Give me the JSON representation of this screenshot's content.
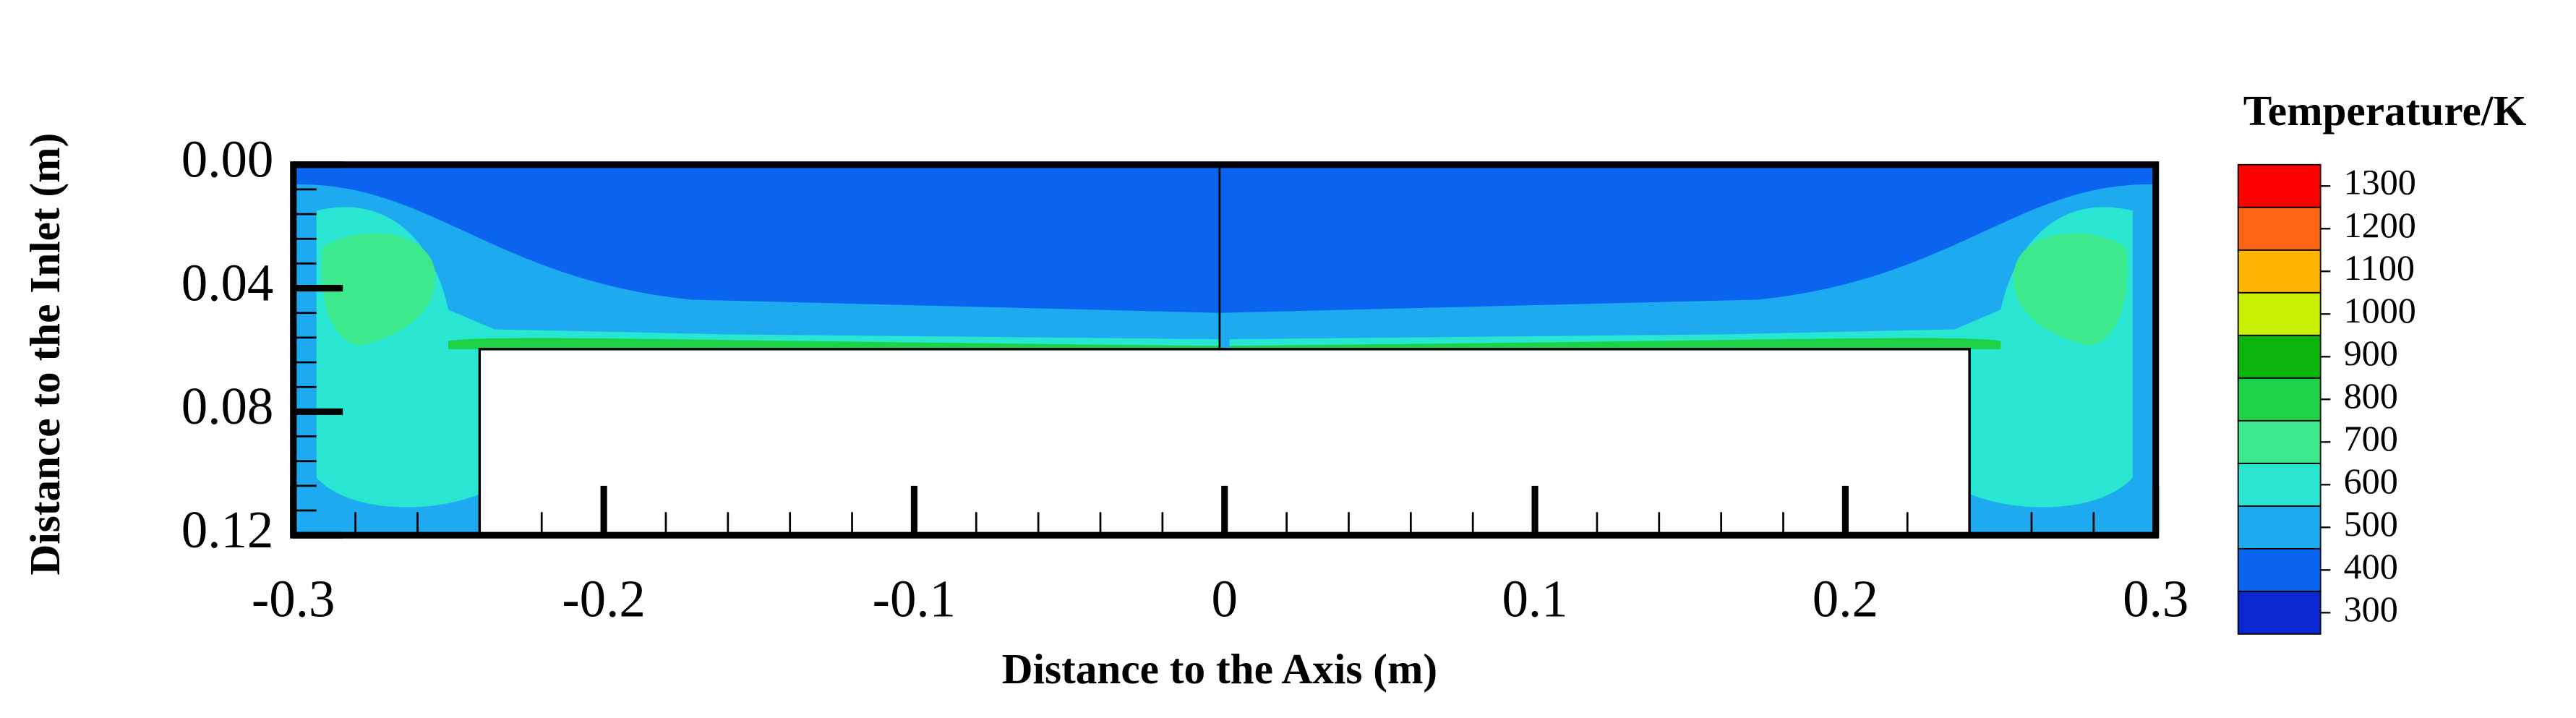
{
  "chart_data": {
    "type": "contour",
    "xlabel": "Distance to the Axis (m)",
    "ylabel": "Distance to the Inlet (m)",
    "xlim": [
      -0.3,
      0.3
    ],
    "ylim": [
      0,
      0.12
    ],
    "y_inverted": true,
    "xticks": [
      -0.3,
      -0.2,
      -0.1,
      0,
      0.1,
      0.2,
      0.3
    ],
    "yticks": [
      {
        "value": 0,
        "label": "0.00"
      },
      0.04,
      0.08,
      0.12
    ],
    "colorbar": {
      "title": "Temperature/K",
      "ticks": [
        300,
        400,
        500,
        600,
        700,
        800,
        900,
        1000,
        1100,
        1200,
        1300
      ],
      "colors": [
        "#0a28d2",
        "#0a64f0",
        "#1eaaf0",
        "#28e6d2",
        "#3ce88c",
        "#1ed246",
        "#0ab40a",
        "#c8f000",
        "#ffb400",
        "#ff6414",
        "#ff0000"
      ]
    }
  }
}
